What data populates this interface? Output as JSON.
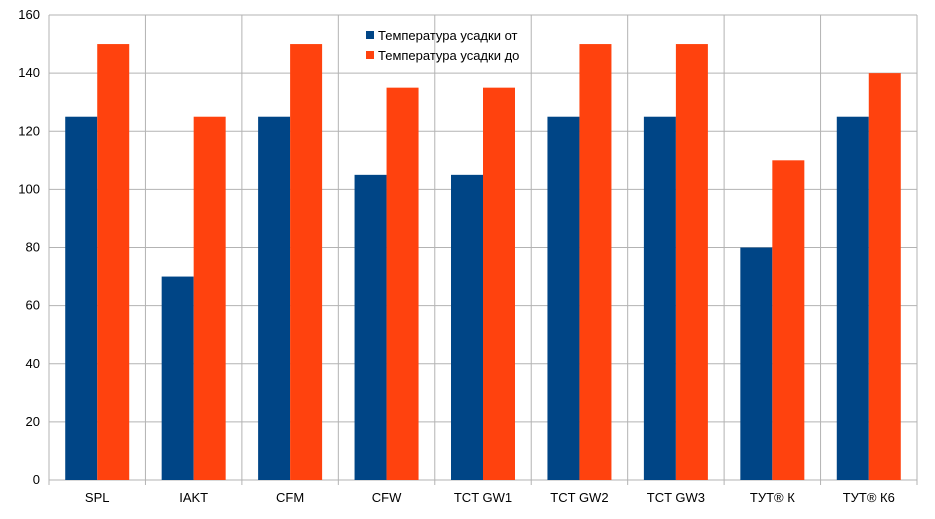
{
  "chart_data": {
    "type": "bar",
    "categories": [
      "SPL",
      "IAKT",
      "CFM",
      "CFW",
      "TCT GW1",
      "TCT GW2",
      "TCT GW3",
      "ТУТ® К",
      "ТУТ® К6"
    ],
    "series": [
      {
        "name": "Температура усадки от",
        "color": "#004586",
        "values": [
          125,
          70,
          125,
          105,
          105,
          125,
          125,
          80,
          125
        ]
      },
      {
        "name": "Температура усадки до",
        "color": "#ff420e",
        "values": [
          150,
          125,
          150,
          135,
          135,
          150,
          150,
          110,
          140
        ]
      }
    ],
    "ylim": [
      0,
      160
    ],
    "yticks": [
      0,
      20,
      40,
      60,
      80,
      100,
      120,
      140,
      160
    ],
    "grid": true,
    "legend_position": "top-center"
  }
}
